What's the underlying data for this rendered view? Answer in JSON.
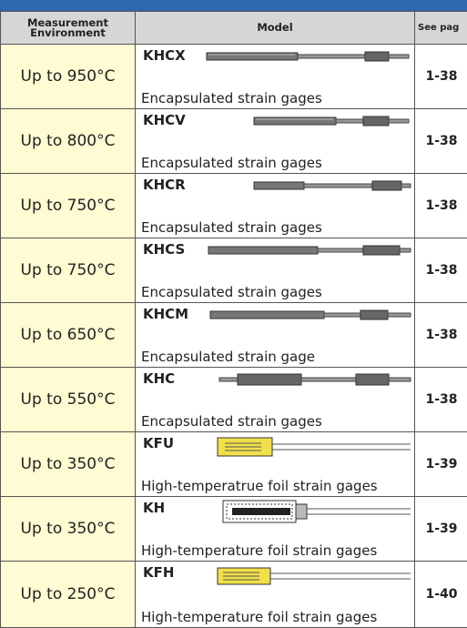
{
  "table": {
    "headers": [
      "Measurement Environment",
      "Model",
      "See pag"
    ],
    "rows": [
      {
        "environment": "Up to 950°C",
        "model": "KHCX",
        "description": "Encapsulated strain gages",
        "page": "1-38"
      },
      {
        "environment": "Up to 800°C",
        "model": "KHCV",
        "description": "Encapsulated strain gages",
        "page": "1-38"
      },
      {
        "environment": "Up to 750°C",
        "model": "KHCR",
        "description": "Encapsulated strain gages",
        "page": "1-38"
      },
      {
        "environment": "Up to 750°C",
        "model": "KHCS",
        "description": "Encapsulated strain gages",
        "page": "1-38"
      },
      {
        "environment": "Up to 650°C",
        "model": "KHCM",
        "description": "Encapsulated strain gage",
        "page": "1-38"
      },
      {
        "environment": "Up to 550°C",
        "model": "KHC",
        "description": "Encapsulated strain gages",
        "page": "1-38"
      },
      {
        "environment": "Up to 350°C",
        "model": "KFU",
        "description": "High-temperatrue foil strain gages",
        "page": "1-39"
      },
      {
        "environment": "Up to 350°C",
        "model": "KH",
        "description": "High-temperature foil strain gages",
        "page": "1-39"
      },
      {
        "environment": "Up to 250°C",
        "model": "KFH",
        "description": "High-temperature foil strain gages",
        "page": "1-40"
      }
    ]
  }
}
